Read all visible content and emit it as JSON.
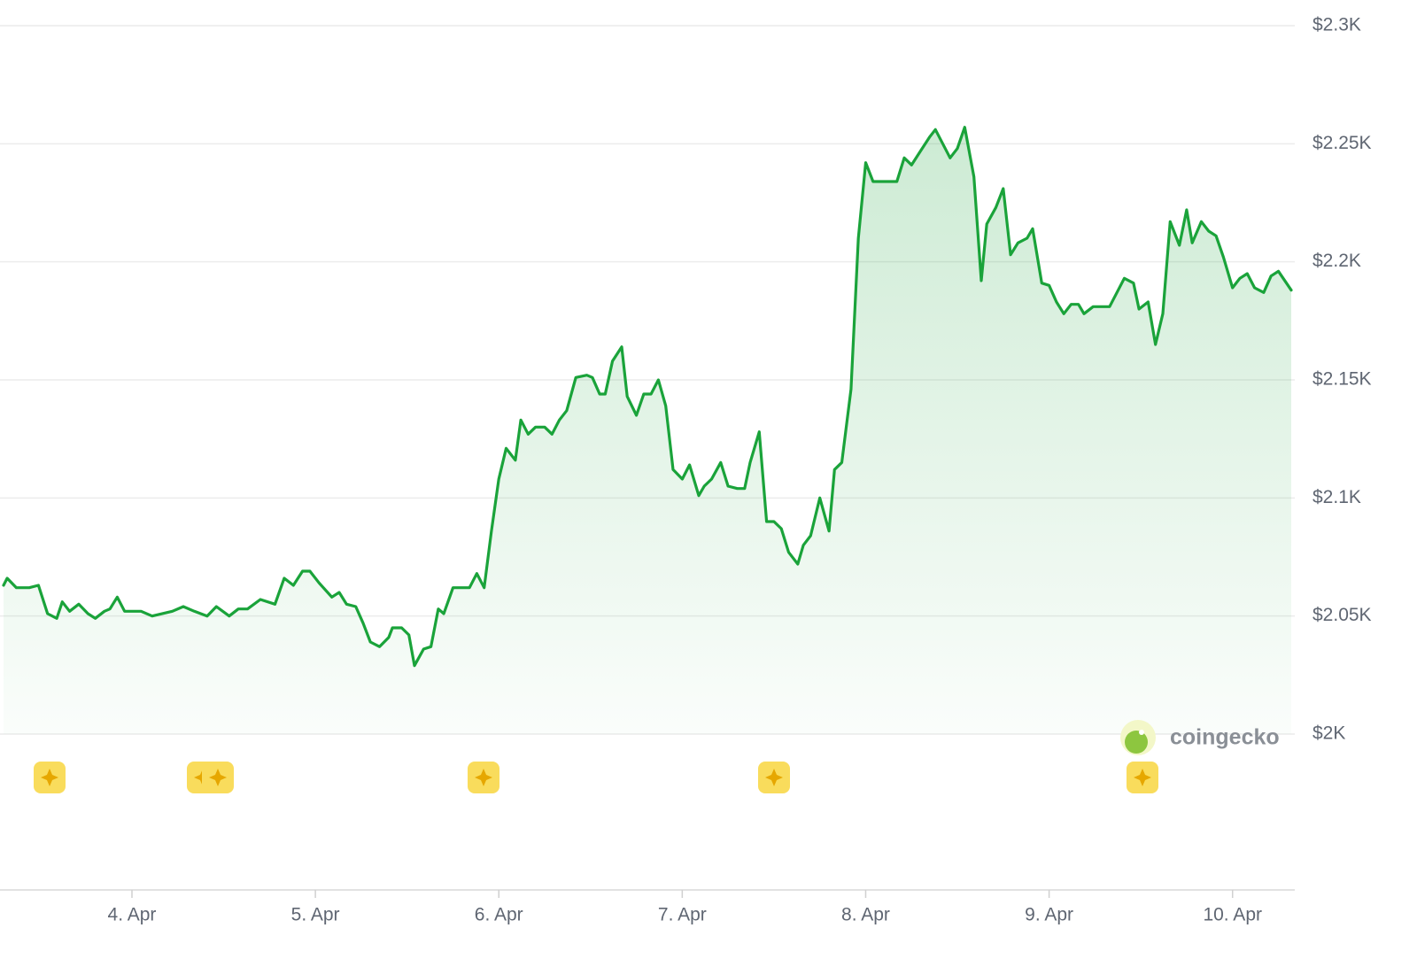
{
  "chart_data": {
    "type": "line",
    "watermark": "coingecko",
    "xlim": [
      3.3,
      10.32
    ],
    "xticks": [
      {
        "value": 4,
        "label": "4. Apr"
      },
      {
        "value": 5,
        "label": "5. Apr"
      },
      {
        "value": 6,
        "label": "6. Apr"
      },
      {
        "value": 7,
        "label": "7. Apr"
      },
      {
        "value": 8,
        "label": "8. Apr"
      },
      {
        "value": 9,
        "label": "9. Apr"
      },
      {
        "value": 10,
        "label": "10. Apr"
      }
    ],
    "ylim": [
      2000,
      2300
    ],
    "yticks": [
      {
        "value": 2000,
        "label": "$2K"
      },
      {
        "value": 2050,
        "label": "$2.05K"
      },
      {
        "value": 2100,
        "label": "$2.1K"
      },
      {
        "value": 2150,
        "label": "$2.15K"
      },
      {
        "value": 2200,
        "label": "$2.2K"
      },
      {
        "value": 2250,
        "label": "$2.25K"
      },
      {
        "value": 2300,
        "label": "$2.3K"
      }
    ],
    "grid": true,
    "series": [
      {
        "color": "#1aa33a",
        "x": [
          3.3,
          3.32,
          3.37,
          3.44,
          3.49,
          3.54,
          3.59,
          3.62,
          3.66,
          3.71,
          3.76,
          3.8,
          3.85,
          3.88,
          3.92,
          3.96,
          4.05,
          4.11,
          4.22,
          4.28,
          4.34,
          4.41,
          4.46,
          4.53,
          4.58,
          4.63,
          4.7,
          4.78,
          4.83,
          4.88,
          4.93,
          4.97,
          5.02,
          5.09,
          5.13,
          5.17,
          5.22,
          5.26,
          5.3,
          5.35,
          5.4,
          5.42,
          5.47,
          5.51,
          5.54,
          5.59,
          5.63,
          5.67,
          5.7,
          5.75,
          5.81,
          5.84,
          5.88,
          5.92,
          5.96,
          6.0,
          6.04,
          6.09,
          6.12,
          6.16,
          6.2,
          6.25,
          6.29,
          6.33,
          6.37,
          6.42,
          6.48,
          6.51,
          6.55,
          6.58,
          6.62,
          6.67,
          6.7,
          6.75,
          6.79,
          6.83,
          6.87,
          6.91,
          6.95,
          7.0,
          7.04,
          7.09,
          7.12,
          7.16,
          7.21,
          7.25,
          7.3,
          7.34,
          7.37,
          7.42,
          7.46,
          7.5,
          7.54,
          7.58,
          7.63,
          7.66,
          7.7,
          7.75,
          7.8,
          7.83,
          7.87,
          7.92,
          7.96,
          8.0,
          8.04,
          8.1,
          8.17,
          8.21,
          8.25,
          8.3,
          8.35,
          8.38,
          8.42,
          8.46,
          8.5,
          8.54,
          8.59,
          8.63,
          8.66,
          8.71,
          8.75,
          8.79,
          8.83,
          8.88,
          8.91,
          8.96,
          9.0,
          9.04,
          9.08,
          9.12,
          9.16,
          9.19,
          9.24,
          9.29,
          9.33,
          9.37,
          9.41,
          9.46,
          9.49,
          9.54,
          9.58,
          9.62,
          9.66,
          9.71,
          9.75,
          9.78,
          9.83,
          9.87,
          9.91,
          9.95,
          10.0,
          10.04,
          10.08,
          10.12,
          10.17,
          10.21,
          10.25,
          10.32
        ],
        "values": [
          2063,
          2066,
          2062,
          2062,
          2063,
          2051,
          2049,
          2056,
          2052,
          2055,
          2051,
          2049,
          2052,
          2053,
          2058,
          2052,
          2052,
          2050,
          2052,
          2054,
          2052,
          2050,
          2054,
          2050,
          2053,
          2053,
          2057,
          2055,
          2066,
          2063,
          2069,
          2069,
          2064,
          2058,
          2060,
          2055,
          2054,
          2047,
          2039,
          2037,
          2041,
          2045,
          2045,
          2042,
          2029,
          2036,
          2037,
          2053,
          2051,
          2062,
          2062,
          2062,
          2068,
          2062,
          2086,
          2108,
          2121,
          2116,
          2133,
          2127,
          2130,
          2130,
          2127,
          2133,
          2137,
          2151,
          2152,
          2151,
          2144,
          2144,
          2158,
          2164,
          2143,
          2135,
          2144,
          2144,
          2150,
          2139,
          2112,
          2108,
          2114,
          2101,
          2105,
          2108,
          2115,
          2105,
          2104,
          2104,
          2115,
          2128,
          2090,
          2090,
          2087,
          2077,
          2072,
          2080,
          2084,
          2100,
          2086,
          2112,
          2115,
          2146,
          2210,
          2242,
          2234,
          2234,
          2234,
          2244,
          2241,
          2247,
          2253,
          2256,
          2250,
          2244,
          2248,
          2257,
          2236,
          2192,
          2216,
          2223,
          2231,
          2203,
          2208,
          2210,
          2214,
          2191,
          2190,
          2183,
          2178,
          2182,
          2182,
          2178,
          2181,
          2181,
          2181,
          2187,
          2193,
          2191,
          2180,
          2183,
          2165,
          2178,
          2217,
          2207,
          2222,
          2208,
          2217,
          2213,
          2211,
          2202,
          2189,
          2193,
          2195,
          2189,
          2187,
          2194,
          2196,
          2188
        ]
      }
    ]
  }
}
